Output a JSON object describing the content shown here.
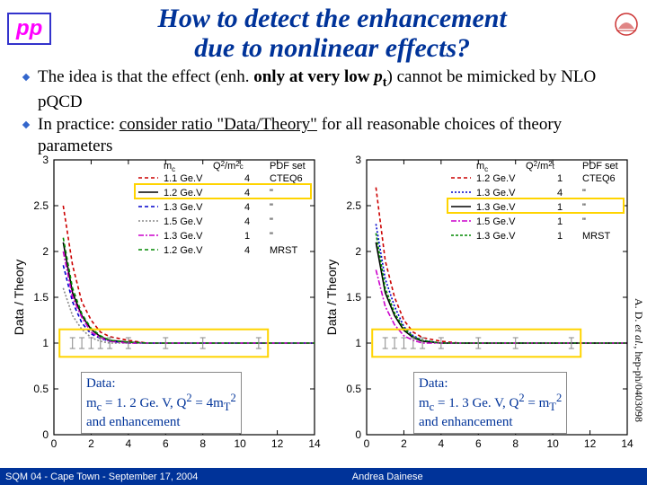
{
  "header": {
    "pp": "pp",
    "title_line1": "How to detect the enhancement",
    "title_line2": "due to nonlinear effects?"
  },
  "bullets": [
    {
      "pre": "The idea is that the effect (enh. ",
      "bold": "only at very low ",
      "var": "p",
      "sub": "t",
      "post": ") cannot be mimicked by NLO pQCD"
    },
    {
      "pre": "In practice: ",
      "u": "consider ratio \"Data/Theory\"",
      "post": " for all reasonable choices of theory parameters"
    }
  ],
  "citation": {
    "pre": "A. D. ",
    "it": "et al.",
    "post": ", hep-ph/0403098"
  },
  "footer": {
    "left": "SQM 04 - Cape Town - September 17, 2004",
    "center": "Andrea Dainese"
  },
  "plot_common": {
    "ylabel": "Data / Theory",
    "xlim": [
      0,
      14
    ],
    "ylim": [
      0,
      3
    ],
    "xtick_step": 2,
    "ytick_step": 0.5,
    "background": "#ffffff",
    "axis_color": "#000000",
    "tick_len": 5,
    "axis_font": 12,
    "label_font": 14
  },
  "plot_left": {
    "legend_header": [
      "m",
      "c",
      "Q",
      "2",
      "/m",
      "2",
      "c",
      "PDF set"
    ],
    "legend": [
      {
        "color": "#cc0000",
        "dash": "4 3",
        "mc": "1.1 Ge.V",
        "q": "4",
        "pdf": "CTEQ6"
      },
      {
        "color": "#000000",
        "dash": "",
        "mc": "1.2 Ge.V",
        "q": "4",
        "pdf": "\""
      },
      {
        "color": "#0000cc",
        "dash": "4 3",
        "mc": "1.3 Ge.V",
        "q": "4",
        "pdf": "\""
      },
      {
        "color": "#888888",
        "dash": "2 2",
        "mc": "1.5 Ge.V",
        "q": "4",
        "pdf": "\""
      },
      {
        "color": "#cc00cc",
        "dash": "6 2 2 2",
        "mc": "1.3 Ge.V",
        "q": "1",
        "pdf": "\""
      },
      {
        "color": "#008800",
        "dash": "4 3",
        "mc": "1.2 Ge.V",
        "q": "4",
        "pdf": "MRST"
      }
    ],
    "series": {
      "x": [
        0.5,
        1,
        1.5,
        2,
        2.5,
        3,
        4,
        5,
        6,
        8,
        10,
        12,
        14
      ],
      "curves": [
        {
          "color": "#cc0000",
          "dash": "4 3",
          "y": [
            2.5,
            1.85,
            1.45,
            1.25,
            1.12,
            1.07,
            1.03,
            1.0,
            1.0,
            1.0,
            1.0,
            1.0,
            1.0
          ]
        },
        {
          "color": "#000000",
          "dash": "",
          "y": [
            2.1,
            1.55,
            1.3,
            1.15,
            1.07,
            1.03,
            1.01,
            1.0,
            1.0,
            1.0,
            1.0,
            1.0,
            1.0
          ]
        },
        {
          "color": "#0000cc",
          "dash": "4 3",
          "y": [
            1.85,
            1.45,
            1.22,
            1.1,
            1.05,
            1.02,
            1.0,
            1.0,
            1.0,
            1.0,
            1.0,
            1.0,
            1.0
          ]
        },
        {
          "color": "#888888",
          "dash": "2 2",
          "y": [
            1.6,
            1.3,
            1.15,
            1.06,
            1.02,
            1.0,
            1.0,
            1.0,
            1.0,
            1.0,
            1.0,
            1.0,
            1.0
          ]
        },
        {
          "color": "#cc00cc",
          "dash": "6 2 2 2",
          "y": [
            2.0,
            1.5,
            1.28,
            1.12,
            1.06,
            1.02,
            1.0,
            1.0,
            1.0,
            1.0,
            1.0,
            1.0,
            1.0
          ]
        },
        {
          "color": "#008800",
          "dash": "4 3",
          "y": [
            2.15,
            1.6,
            1.32,
            1.16,
            1.08,
            1.03,
            1.01,
            1.0,
            1.0,
            1.0,
            1.0,
            1.0,
            1.0
          ]
        }
      ]
    },
    "highlight_legend_row": 1,
    "databox": {
      "line1": "Data:",
      "html": "m<sub>c</sub> = 1. 2 Ge. V, Q<sup>2</sup> = 4m<sub>T</sub><sup>2</sup>",
      "line3": "and enhancement"
    }
  },
  "plot_right": {
    "legend_header": [
      "m",
      "c",
      "Q",
      "2",
      "/m",
      "2",
      "t",
      "PDF set"
    ],
    "legend": [
      {
        "color": "#cc0000",
        "dash": "4 3",
        "mc": "1.2 Ge.V",
        "q": "1",
        "pdf": "CTEQ6"
      },
      {
        "color": "#0000cc",
        "dash": "2 2",
        "mc": "1.3 Ge.V",
        "q": "4",
        "pdf": "\""
      },
      {
        "color": "#000000",
        "dash": "",
        "mc": "1.3 Ge.V",
        "q": "1",
        "pdf": "\""
      },
      {
        "color": "#cc00cc",
        "dash": "6 2 2 2",
        "mc": "1.5 Ge.V",
        "q": "1",
        "pdf": "\""
      },
      {
        "color": "#008800",
        "dash": "3 2",
        "mc": "1.3 Ge.V",
        "q": "1",
        "pdf": "MRST"
      }
    ],
    "series": {
      "x": [
        0.5,
        1,
        1.5,
        2,
        2.5,
        3,
        4,
        5,
        6,
        8,
        10,
        12,
        14
      ],
      "curves": [
        {
          "color": "#cc0000",
          "dash": "4 3",
          "y": [
            2.7,
            1.9,
            1.5,
            1.25,
            1.12,
            1.06,
            1.02,
            1.0,
            1.0,
            1.0,
            1.0,
            1.0,
            1.0
          ]
        },
        {
          "color": "#0000cc",
          "dash": "2 2",
          "y": [
            2.3,
            1.7,
            1.4,
            1.18,
            1.08,
            1.03,
            1.0,
            1.0,
            1.0,
            1.0,
            1.0,
            1.0,
            1.0
          ]
        },
        {
          "color": "#000000",
          "dash": "",
          "y": [
            2.1,
            1.55,
            1.3,
            1.14,
            1.06,
            1.02,
            1.0,
            1.0,
            1.0,
            1.0,
            1.0,
            1.0,
            1.0
          ]
        },
        {
          "color": "#cc00cc",
          "dash": "6 2 2 2",
          "y": [
            1.8,
            1.4,
            1.2,
            1.08,
            1.03,
            1.0,
            1.0,
            1.0,
            1.0,
            1.0,
            1.0,
            1.0,
            1.0
          ]
        },
        {
          "color": "#008800",
          "dash": "3 2",
          "y": [
            2.2,
            1.6,
            1.33,
            1.16,
            1.07,
            1.03,
            1.0,
            1.0,
            1.0,
            1.0,
            1.0,
            1.0,
            1.0
          ]
        }
      ]
    },
    "highlight_legend_row": 2,
    "databox": {
      "line1": "Data:",
      "html": "m<sub>c</sub> = 1. 3 Ge. V, Q<sup>2</sup> = m<sub>T</sub><sup>2</sup>",
      "line3": "and enhancement"
    }
  }
}
